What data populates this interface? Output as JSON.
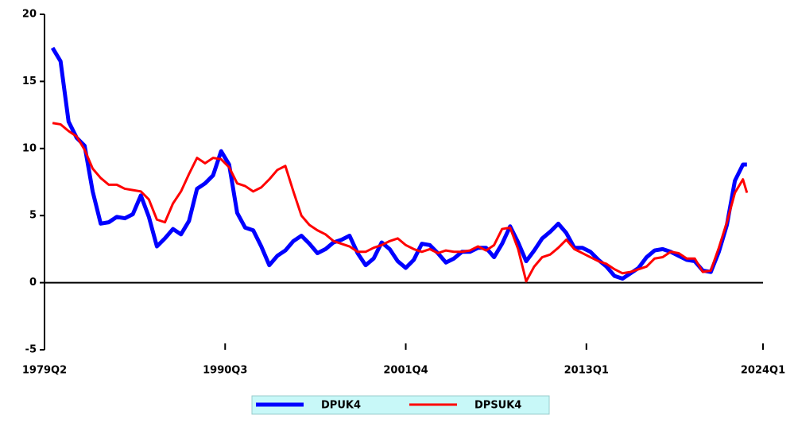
{
  "chart_data": {
    "type": "line",
    "x": [
      1979.75,
      1980.25,
      1980.75,
      1981.25,
      1981.75,
      1982.25,
      1982.75,
      1983.25,
      1983.75,
      1984.25,
      1984.75,
      1985.25,
      1985.75,
      1986.25,
      1986.75,
      1987.25,
      1987.75,
      1988.25,
      1988.75,
      1989.25,
      1989.75,
      1990.25,
      1990.75,
      1991.25,
      1991.75,
      1992.25,
      1992.75,
      1993.25,
      1993.75,
      1994.25,
      1994.75,
      1995.25,
      1995.75,
      1996.25,
      1996.75,
      1997.25,
      1997.75,
      1998.25,
      1998.75,
      1999.25,
      1999.75,
      2000.25,
      2000.75,
      2001.25,
      2001.75,
      2002.25,
      2002.75,
      2003.25,
      2003.75,
      2004.25,
      2004.75,
      2005.25,
      2005.75,
      2006.25,
      2006.75,
      2007.25,
      2007.75,
      2008.25,
      2008.75,
      2009.25,
      2009.75,
      2010.25,
      2010.75,
      2011.25,
      2011.75,
      2012.25,
      2012.75,
      2013.25,
      2013.75,
      2014.25,
      2014.75,
      2015.25,
      2015.75,
      2016.25,
      2016.75,
      2017.25,
      2017.75,
      2018.25,
      2018.75,
      2019.25,
      2019.75,
      2020.25,
      2020.75,
      2021.25,
      2021.75,
      2022.25,
      2022.75,
      2023.0
    ],
    "series": [
      {
        "name": "DPUK4",
        "color": "#0000ff",
        "values": [
          17.5,
          16.5,
          12,
          10.8,
          10.2,
          6.8,
          4.4,
          4.5,
          4.9,
          4.8,
          5.1,
          6.5,
          4.9,
          2.7,
          3.3,
          4,
          3.6,
          4.6,
          7,
          7.4,
          8,
          9.8,
          8.8,
          5.2,
          4.1,
          3.9,
          2.7,
          1.3,
          2,
          2.4,
          3.1,
          3.5,
          2.9,
          2.2,
          2.5,
          3,
          3.2,
          3.5,
          2.2,
          1.3,
          1.8,
          3,
          2.5,
          1.6,
          1.1,
          1.7,
          2.9,
          2.8,
          2.2,
          1.5,
          1.8,
          2.3,
          2.3,
          2.6,
          2.6,
          1.9,
          2.9,
          4.2,
          3,
          1.6,
          2.4,
          3.3,
          3.8,
          4.4,
          3.7,
          2.6,
          2.6,
          2.3,
          1.7,
          1.2,
          0.5,
          0.3,
          0.7,
          1.1,
          1.9,
          2.4,
          2.5,
          2.3,
          2,
          1.7,
          1.6,
          0.9,
          0.8,
          2.3,
          4.3,
          7.6,
          8.8,
          8.8
        ]
      },
      {
        "name": "DPSUK4",
        "color": "#ff0000",
        "values": [
          11.9,
          11.8,
          11.3,
          10.9,
          9.9,
          8.5,
          7.8,
          7.3,
          7.3,
          7,
          6.9,
          6.8,
          6.2,
          4.7,
          4.5,
          5.9,
          6.8,
          8.1,
          9.3,
          8.9,
          9.3,
          9.2,
          8.6,
          7.4,
          7.2,
          6.8,
          7.1,
          7.7,
          8.4,
          8.7,
          6.8,
          5,
          4.3,
          3.9,
          3.6,
          3.1,
          2.9,
          2.7,
          2.3,
          2.3,
          2.6,
          2.8,
          3.1,
          3.3,
          2.8,
          2.5,
          2.3,
          2.5,
          2.2,
          2.4,
          2.3,
          2.3,
          2.4,
          2.7,
          2.4,
          2.8,
          4,
          4.1,
          2.5,
          0.1,
          1.2,
          1.9,
          2.1,
          2.6,
          3.2,
          2.5,
          2.2,
          1.9,
          1.6,
          1.4,
          1,
          0.7,
          0.8,
          1,
          1.2,
          1.8,
          1.9,
          2.3,
          2.2,
          1.8,
          1.8,
          0.8,
          0.9,
          2.6,
          4.5,
          6.7,
          7.7,
          6.7
        ]
      }
    ],
    "xlim": [
      1979.25,
      2024.0
    ],
    "xticks": [
      {
        "value": 1979.25,
        "label": "1979Q2"
      },
      {
        "value": 1990.5,
        "label": "1990Q3"
      },
      {
        "value": 2001.75,
        "label": "2001Q4"
      },
      {
        "value": 2013.0,
        "label": "2013Q1"
      },
      {
        "value": 2024.0,
        "label": "2024Q1"
      }
    ],
    "ylim": [
      -5,
      20
    ],
    "yticks": [
      -5,
      0,
      5,
      10,
      15,
      20
    ],
    "legend": "bottom"
  }
}
